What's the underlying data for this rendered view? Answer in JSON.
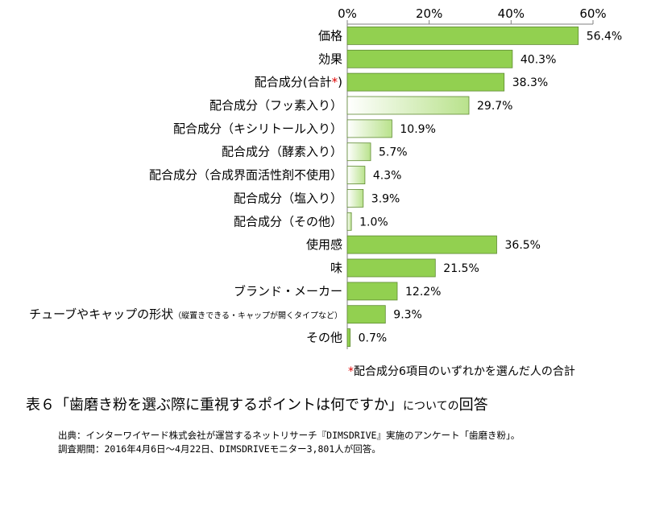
{
  "chart_data": {
    "type": "bar",
    "orientation": "horizontal",
    "categories": [
      "価格",
      "効果",
      "配合成分(合計*)",
      "配合成分（フッ素入り）",
      "配合成分（キシリトール入り）",
      "配合成分（酵素入り）",
      "配合成分（合成界面活性剤不使用）",
      "配合成分（塩入り）",
      "配合成分（その他）",
      "使用感",
      "味",
      "ブランド・メーカー",
      "チューブやキャップの形状",
      "その他"
    ],
    "category_notes": {
      "12": "（縦置きできる・キャップが開くタイプなど）"
    },
    "values": [
      56.4,
      40.3,
      38.3,
      29.7,
      10.9,
      5.7,
      4.3,
      3.9,
      1.0,
      36.5,
      21.5,
      12.2,
      9.3,
      0.7
    ],
    "value_labels": [
      "56.4%",
      "40.3%",
      "38.3%",
      "29.7%",
      "10.9%",
      "5.7%",
      "4.3%",
      "3.9%",
      "1.0%",
      "36.5%",
      "21.5%",
      "12.2%",
      "9.3%",
      "0.7%"
    ],
    "bar_styles": [
      "solid",
      "solid",
      "solid",
      "light",
      "light",
      "light",
      "light",
      "light",
      "light",
      "solid",
      "solid",
      "solid",
      "solid",
      "solid"
    ],
    "xlim": [
      0,
      60
    ],
    "ticks": [
      0,
      20,
      40,
      60
    ],
    "tick_labels": [
      "0%",
      "20%",
      "40%",
      "60%"
    ],
    "colors": {
      "solid": "#92d050",
      "light_start": "#ffffff",
      "light_end": "#b9e28c",
      "border": "#5f8a32",
      "axis": "#808080"
    }
  },
  "note": {
    "star": "*",
    "text": "配合成分6項目のいずれかを選んだ人の合計"
  },
  "table_title": {
    "main": "表６「歯磨き粉を選ぶ際に重視するポイントは何ですか」",
    "small": "についての",
    "end": "回答"
  },
  "source": {
    "line1": "出典：インターワイヤード株式会社が運営するネットリサーチ『DIMSDRIVE』実施のアンケート「歯磨き粉」。",
    "line2": "調査期間：2016年4月6日～4月22日、DIMSDRIVEモニター3,801人が回答。"
  }
}
